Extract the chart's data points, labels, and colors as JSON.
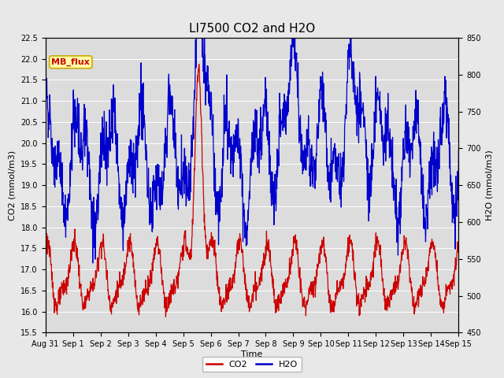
{
  "title": "LI7500 CO2 and H2O",
  "xlabel": "Time",
  "ylabel_left": "CO2 (mmol/m3)",
  "ylabel_right": "H2O (mmol/m3)",
  "ylim_left": [
    15.5,
    22.5
  ],
  "ylim_right": [
    450,
    850
  ],
  "yticks_left": [
    15.5,
    16.0,
    16.5,
    17.0,
    17.5,
    18.0,
    18.5,
    19.0,
    19.5,
    20.0,
    20.5,
    21.0,
    21.5,
    22.0,
    22.5
  ],
  "yticks_right": [
    450,
    500,
    550,
    600,
    650,
    700,
    750,
    800,
    850
  ],
  "xtick_labels": [
    "Aug 31",
    "Sep 1",
    "Sep 2",
    "Sep 3",
    "Sep 4",
    "Sep 5",
    "Sep 6",
    "Sep 7",
    "Sep 8",
    "Sep 9",
    "Sep 10",
    "Sep 11",
    "Sep 12",
    "Sep 13",
    "Sep 14",
    "Sep 15"
  ],
  "co2_color": "#CC0000",
  "h2o_color": "#0000CC",
  "fig_facecolor": "#E8E8E8",
  "plot_bg_color": "#DCDCDC",
  "grid_color": "#FFFFFF",
  "label_box_facecolor": "#FFFFAA",
  "label_box_edgecolor": "#CCAA00",
  "label_text_color": "#CC0000",
  "label_text": "MB_flux",
  "title_fontsize": 11,
  "axis_label_fontsize": 8,
  "tick_fontsize": 7,
  "legend_fontsize": 8,
  "linewidth_co2": 0.9,
  "linewidth_h2o": 0.9,
  "n_days": 15,
  "pts_per_day": 96
}
